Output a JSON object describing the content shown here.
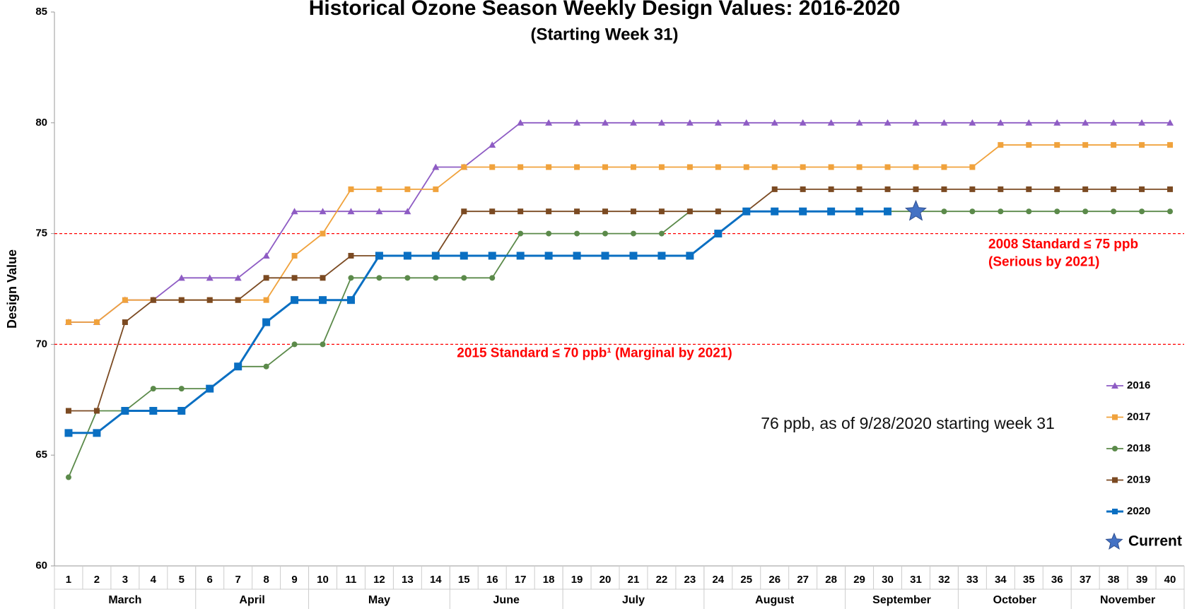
{
  "chart_data": {
    "type": "line",
    "title": "Historical Ozone Season Weekly Design Values: 2016-2020",
    "subtitle": "(Starting Week 31)",
    "y_label": "Design Value",
    "x": [
      1,
      2,
      3,
      4,
      5,
      6,
      7,
      8,
      9,
      10,
      11,
      12,
      13,
      14,
      15,
      16,
      17,
      18,
      19,
      20,
      21,
      22,
      23,
      24,
      25,
      26,
      27,
      28,
      29,
      30,
      31,
      32,
      33,
      34,
      35,
      36,
      37,
      38,
      39,
      40
    ],
    "groups": [
      {
        "label": "March",
        "first": 1,
        "last": 5
      },
      {
        "label": "April",
        "first": 6,
        "last": 9
      },
      {
        "label": "May",
        "first": 10,
        "last": 14
      },
      {
        "label": "June",
        "first": 15,
        "last": 18
      },
      {
        "label": "July",
        "first": 19,
        "last": 23
      },
      {
        "label": "August",
        "first": 24,
        "last": 28
      },
      {
        "label": "September",
        "first": 29,
        "last": 32
      },
      {
        "label": "October",
        "first": 33,
        "last": 36
      },
      {
        "label": "November",
        "first": 37,
        "last": 40
      }
    ],
    "ylim": [
      60,
      85
    ],
    "yticks": [
      60,
      65,
      70,
      75,
      80,
      85
    ],
    "series": [
      {
        "name": "2016",
        "color": "#8e5cc4",
        "marker": "triangle",
        "values": [
          71,
          71,
          72,
          72,
          73,
          73,
          73,
          74,
          76,
          76,
          76,
          76,
          76,
          78,
          78,
          79,
          80,
          80,
          80,
          80,
          80,
          80,
          80,
          80,
          80,
          80,
          80,
          80,
          80,
          80,
          80,
          80,
          80,
          80,
          80,
          80,
          80,
          80,
          80,
          80
        ]
      },
      {
        "name": "2017",
        "color": "#f0a23c",
        "marker": "square",
        "values": [
          71,
          71,
          72,
          72,
          72,
          72,
          72,
          72,
          74,
          75,
          77,
          77,
          77,
          77,
          78,
          78,
          78,
          78,
          78,
          78,
          78,
          78,
          78,
          78,
          78,
          78,
          78,
          78,
          78,
          78,
          78,
          78,
          78,
          79,
          79,
          79,
          79,
          79,
          79,
          79
        ]
      },
      {
        "name": "2018",
        "color": "#5b8a4a",
        "marker": "circle",
        "values": [
          64,
          67,
          67,
          68,
          68,
          68,
          69,
          69,
          70,
          70,
          73,
          73,
          73,
          73,
          73,
          73,
          75,
          75,
          75,
          75,
          75,
          75,
          76,
          76,
          76,
          76,
          76,
          76,
          76,
          76,
          76,
          76,
          76,
          76,
          76,
          76,
          76,
          76,
          76,
          76
        ]
      },
      {
        "name": "2019",
        "color": "#7b4a22",
        "marker": "square",
        "values": [
          67,
          67,
          71,
          72,
          72,
          72,
          72,
          73,
          73,
          73,
          74,
          74,
          74,
          74,
          76,
          76,
          76,
          76,
          76,
          76,
          76,
          76,
          76,
          76,
          76,
          77,
          77,
          77,
          77,
          77,
          77,
          77,
          77,
          77,
          77,
          77,
          77,
          77,
          77,
          77
        ]
      },
      {
        "name": "2020",
        "color": "#0a6fc2",
        "marker": "bigsquare",
        "values": [
          66,
          66,
          67,
          67,
          67,
          68,
          69,
          71,
          72,
          72,
          72,
          74,
          74,
          74,
          74,
          74,
          74,
          74,
          74,
          74,
          74,
          74,
          74,
          75,
          76,
          76,
          76,
          76,
          76,
          76,
          null,
          null,
          null,
          null,
          null,
          null,
          null,
          null,
          null,
          null
        ]
      }
    ],
    "current": {
      "name": "Current",
      "x": 31,
      "value": 76,
      "color": "#4472c4"
    },
    "reference_lines": [
      {
        "value": 75,
        "color": "#ff0000",
        "label": [
          "2008 Standard ≤ 75 ppb",
          "(Serious by 2021)"
        ]
      },
      {
        "value": 70,
        "color": "#ff0000",
        "label": [
          "2015 Standard ≤ 70 ppb¹ (Marginal by 2021)"
        ]
      }
    ],
    "annotation": "76 ppb, as of 9/28/2020 starting week 31"
  }
}
